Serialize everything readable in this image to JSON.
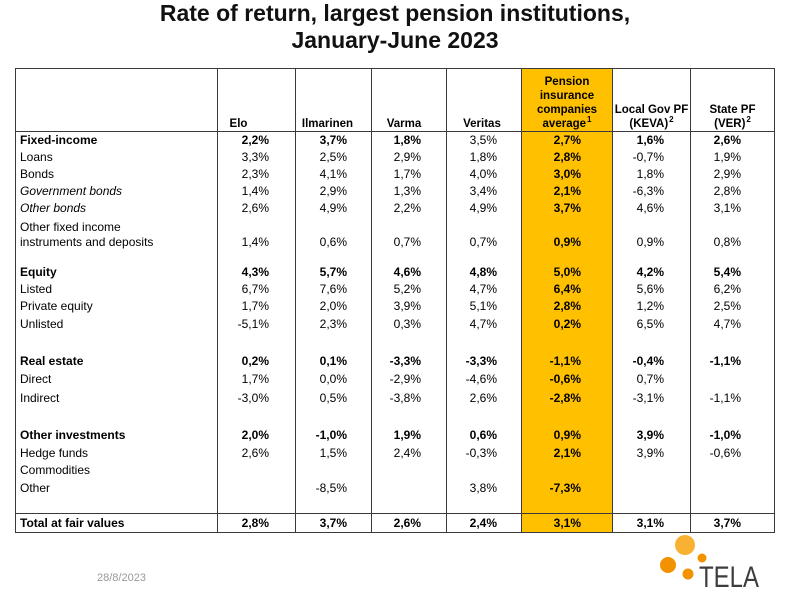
{
  "title": "Rate of return, largest pension institutions,\nJanuary-June 2023",
  "table": {
    "highlight_color": "#FFC000",
    "columns": [
      {
        "label": "Elo"
      },
      {
        "label": "Ilmarinen"
      },
      {
        "label": "Varma"
      },
      {
        "label": "Veritas"
      },
      {
        "label": "Pension\ninsurance\ncompanies\naverage",
        "note": "1"
      },
      {
        "label": "Local Gov PF\n(KEVA)",
        "note": "2"
      },
      {
        "label": "State PF\n(VER)",
        "note": "2"
      }
    ],
    "rows": [
      {
        "label": "Fixed-income",
        "values": [
          "2,2%",
          "3,7%",
          "1,8%",
          "3,5%",
          "2,7%",
          "1,6%",
          "2,6%"
        ]
      },
      {
        "label": "Loans",
        "values": [
          "3,3%",
          "2,5%",
          "2,9%",
          "1,8%",
          "2,8%",
          "-0,7%",
          "1,9%"
        ]
      },
      {
        "label": "Bonds",
        "values": [
          "2,3%",
          "4,1%",
          "1,7%",
          "4,0%",
          "3,0%",
          "1,8%",
          "2,9%"
        ]
      },
      {
        "label": "Government bonds",
        "values": [
          "1,4%",
          "2,9%",
          "1,3%",
          "3,4%",
          "2,1%",
          "-6,3%",
          "2,8%"
        ]
      },
      {
        "label": "Other bonds",
        "values": [
          "2,6%",
          "4,9%",
          "2,2%",
          "4,9%",
          "3,7%",
          "4,6%",
          "3,1%"
        ]
      },
      {
        "label": "Other fixed income\ninstruments and deposits",
        "values": [
          "1,4%",
          "0,6%",
          "0,7%",
          "0,7%",
          "0,9%",
          "0,9%",
          "0,8%"
        ]
      },
      {
        "label": "",
        "values": []
      },
      {
        "label": "Equity",
        "values": [
          "4,3%",
          "5,7%",
          "4,6%",
          "4,8%",
          "5,0%",
          "4,2%",
          "5,4%"
        ]
      },
      {
        "label": "Listed",
        "values": [
          "6,7%",
          "7,6%",
          "5,2%",
          "4,7%",
          "6,4%",
          "5,6%",
          "6,2%"
        ]
      },
      {
        "label": "Private equity",
        "values": [
          "1,7%",
          "2,0%",
          "3,9%",
          "5,1%",
          "2,8%",
          "1,2%",
          "2,5%"
        ]
      },
      {
        "label": "Unlisted",
        "values": [
          "-5,1%",
          "2,3%",
          "0,3%",
          "4,7%",
          "0,2%",
          "6,5%",
          "4,7%"
        ]
      },
      {
        "label": "",
        "values": []
      },
      {
        "label": "Real estate",
        "values": [
          "0,2%",
          "0,1%",
          "-3,3%",
          "-3,3%",
          "-1,1%",
          "-0,4%",
          "-1,1%"
        ]
      },
      {
        "label": "Direct",
        "values": [
          "1,7%",
          "0,0%",
          "-2,9%",
          "-4,6%",
          "-0,6%",
          "0,7%",
          ""
        ]
      },
      {
        "label": "Indirect",
        "values": [
          "-3,0%",
          "0,5%",
          "-3,8%",
          "2,6%",
          "-2,8%",
          "-3,1%",
          "-1,1%"
        ]
      },
      {
        "label": "",
        "values": []
      },
      {
        "label": "Other investments",
        "values": [
          "2,0%",
          "-1,0%",
          "1,9%",
          "0,6%",
          "0,9%",
          "3,9%",
          "-1,0%"
        ]
      },
      {
        "label": "Hedge funds",
        "values": [
          "2,6%",
          "1,5%",
          "2,4%",
          "-0,3%",
          "2,1%",
          "3,9%",
          "-0,6%"
        ]
      },
      {
        "label": "Commodities",
        "values": [
          "",
          "",
          "",
          "",
          "",
          "",
          ""
        ]
      },
      {
        "label": "Other",
        "values": [
          "",
          "-8,5%",
          "",
          "3,8%",
          "-7,3%",
          "",
          ""
        ]
      },
      {
        "label": "",
        "values": []
      },
      {
        "label": "Total at fair values",
        "values": [
          "2,8%",
          "3,7%",
          "2,6%",
          "2,4%",
          "3,1%",
          "3,1%",
          "3,7%"
        ]
      }
    ]
  },
  "footer": {
    "date": "28/8/2023"
  },
  "logo": {
    "text": "TELA",
    "accent": "#F39200",
    "accent_light": "#F8B133"
  }
}
